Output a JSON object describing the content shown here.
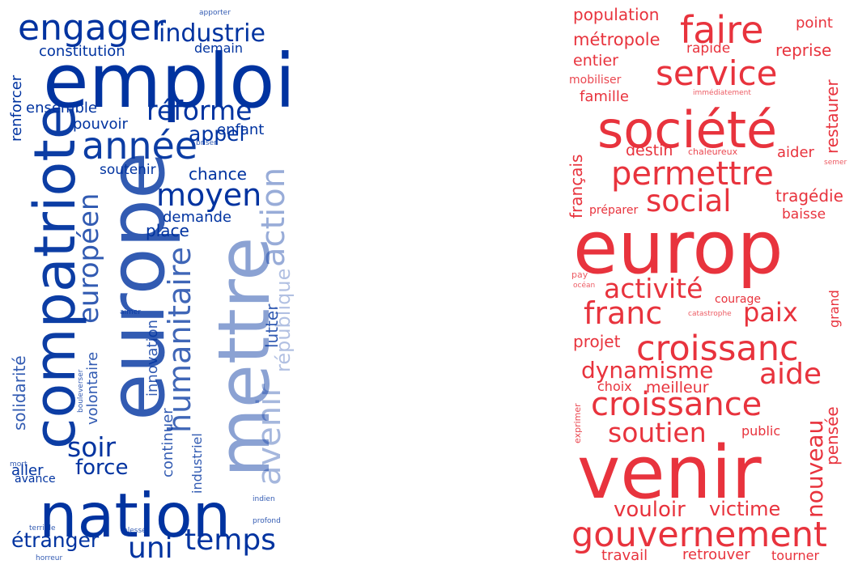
{
  "clouds": [
    {
      "id": "left",
      "color": "#0033a0",
      "words": [
        "emploi",
        "europe",
        "nation",
        "compatriote",
        "mettre",
        "année",
        "engager",
        "industrie",
        "constitution",
        "demain",
        "réforme",
        "moyen",
        "européen",
        "humanitaire",
        "avenir",
        "action",
        "république",
        "soir",
        "force",
        "temps",
        "uni",
        "étranger",
        "appel",
        "chance",
        "soutenir",
        "enfant",
        "pouvoir",
        "ensemble",
        "renforcer",
        "demande",
        "place",
        "lutter",
        "innovation",
        "continuer",
        "industriel",
        "volontaire",
        "solidarité",
        "aller",
        "avance",
        "mort",
        "bouleverser",
        "aimer",
        "briser",
        "apporter",
        "indien",
        "profond",
        "terrible",
        "blessé",
        "horreur"
      ]
    },
    {
      "id": "right",
      "color": "#e8333d",
      "words": [
        "europ",
        "venir",
        "société",
        "permettre",
        "faire",
        "service",
        "social",
        "franc",
        "croissanc",
        "croissance",
        "activité",
        "paix",
        "aide",
        "gouvernement",
        "soutien",
        "nouveau",
        "dynamisme",
        "vouloir",
        "victime",
        "population",
        "métropole",
        "entier",
        "mobiliser",
        "famille",
        "point",
        "rapide",
        "reprise",
        "restaurer",
        "immédiatement",
        "français",
        "destin",
        "chaleureux",
        "aider",
        "semer",
        "tragédie",
        "préparer",
        "baisse",
        "pay",
        "océan",
        "courage",
        "grand",
        "catastrophe",
        "projet",
        "choix",
        "meilleur",
        "pensée",
        "public",
        "exprimer",
        "travail",
        "retrouver",
        "tourner"
      ]
    }
  ]
}
